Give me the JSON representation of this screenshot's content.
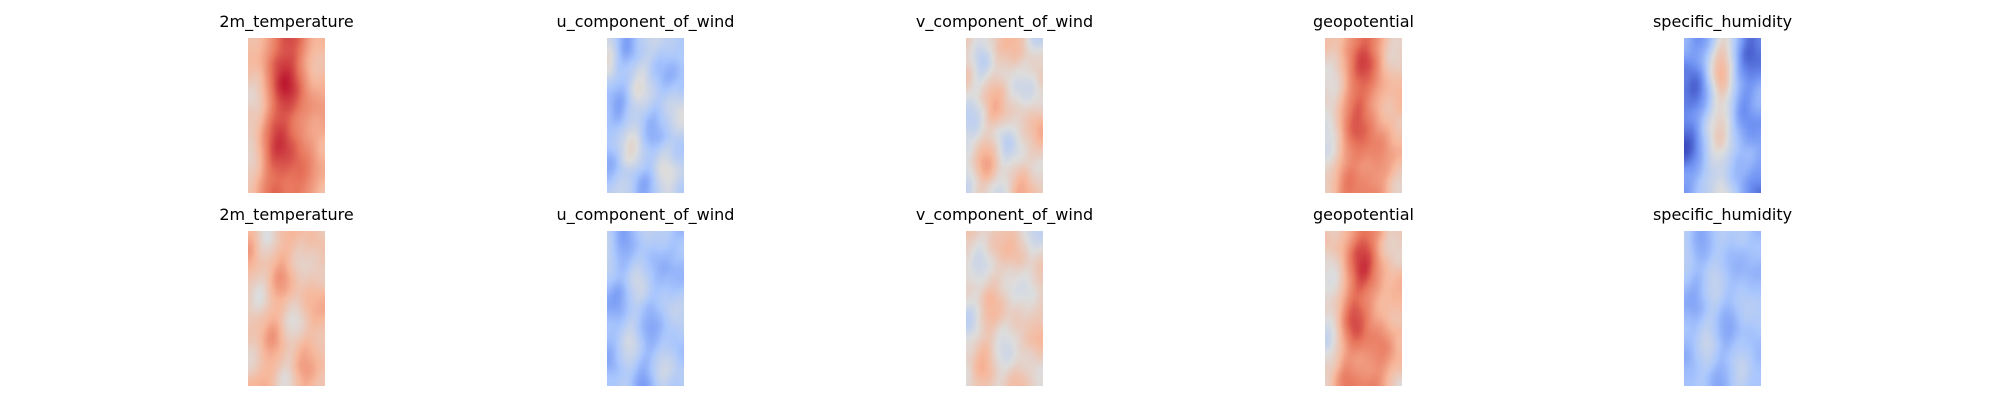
{
  "figure": {
    "rows": 2,
    "cols": 5
  },
  "chart_data": [
    {
      "type": "heatmap",
      "title": "2m_temperature",
      "colormap": "coolwarm",
      "palette": [
        "#3b4cc0",
        "#6f92f3",
        "#aac7fd",
        "#dddddd",
        "#f7b89c",
        "#e7745b",
        "#b40426"
      ],
      "grid": false,
      "axes": "off",
      "profile": "band",
      "base": 0.72,
      "amplitude": 0.12,
      "seed": 11
    },
    {
      "type": "heatmap",
      "title": "u_component_of_wind",
      "colormap": "coolwarm",
      "palette": [
        "#3b4cc0",
        "#6f92f3",
        "#aac7fd",
        "#dddddd",
        "#f7b89c",
        "#e7745b",
        "#b40426"
      ],
      "grid": false,
      "axes": "off",
      "profile": "noise",
      "base": 0.38,
      "amplitude": 0.24,
      "seed": 23
    },
    {
      "type": "heatmap",
      "title": "v_component_of_wind",
      "colormap": "coolwarm",
      "palette": [
        "#3b4cc0",
        "#6f92f3",
        "#aac7fd",
        "#dddddd",
        "#f7b89c",
        "#e7745b",
        "#b40426"
      ],
      "grid": false,
      "axes": "off",
      "profile": "noise",
      "base": 0.55,
      "amplitude": 0.25,
      "seed": 37
    },
    {
      "type": "heatmap",
      "title": "geopotential",
      "colormap": "coolwarm",
      "palette": [
        "#3b4cc0",
        "#6f92f3",
        "#aac7fd",
        "#dddddd",
        "#f7b89c",
        "#e7745b",
        "#b40426"
      ],
      "grid": false,
      "axes": "off",
      "profile": "band",
      "base": 0.66,
      "amplitude": 0.15,
      "seed": 41
    },
    {
      "type": "heatmap",
      "title": "specific_humidity",
      "colormap": "coolwarm",
      "palette": [
        "#3b4cc0",
        "#6f92f3",
        "#aac7fd",
        "#dddddd",
        "#f7b89c",
        "#e7745b",
        "#b40426"
      ],
      "grid": false,
      "axes": "off",
      "profile": "humidity",
      "base": 0.25,
      "amplitude": 0.22,
      "seed": 53
    },
    {
      "type": "heatmap",
      "title": "2m_temperature",
      "colormap": "coolwarm",
      "palette": [
        "#3b4cc0",
        "#6f92f3",
        "#aac7fd",
        "#dddddd",
        "#f7b89c",
        "#e7745b",
        "#b40426"
      ],
      "grid": false,
      "axes": "off",
      "profile": "noise",
      "base": 0.63,
      "amplitude": 0.18,
      "seed": 67
    },
    {
      "type": "heatmap",
      "title": "u_component_of_wind",
      "colormap": "coolwarm",
      "palette": [
        "#3b4cc0",
        "#6f92f3",
        "#aac7fd",
        "#dddddd",
        "#f7b89c",
        "#e7745b",
        "#b40426"
      ],
      "grid": false,
      "axes": "off",
      "profile": "noise",
      "base": 0.34,
      "amplitude": 0.18,
      "seed": 79
    },
    {
      "type": "heatmap",
      "title": "v_component_of_wind",
      "colormap": "coolwarm",
      "palette": [
        "#3b4cc0",
        "#6f92f3",
        "#aac7fd",
        "#dddddd",
        "#f7b89c",
        "#e7745b",
        "#b40426"
      ],
      "grid": false,
      "axes": "off",
      "profile": "noise",
      "base": 0.56,
      "amplitude": 0.2,
      "seed": 83
    },
    {
      "type": "heatmap",
      "title": "geopotential",
      "colormap": "coolwarm",
      "palette": [
        "#3b4cc0",
        "#6f92f3",
        "#aac7fd",
        "#dddddd",
        "#f7b89c",
        "#e7745b",
        "#b40426"
      ],
      "grid": false,
      "axes": "off",
      "profile": "band",
      "base": 0.66,
      "amplitude": 0.17,
      "seed": 97
    },
    {
      "type": "heatmap",
      "title": "specific_humidity",
      "colormap": "coolwarm",
      "palette": [
        "#3b4cc0",
        "#6f92f3",
        "#aac7fd",
        "#dddddd",
        "#f7b89c",
        "#e7745b",
        "#b40426"
      ],
      "grid": false,
      "axes": "off",
      "profile": "noise",
      "base": 0.33,
      "amplitude": 0.14,
      "seed": 101
    }
  ]
}
